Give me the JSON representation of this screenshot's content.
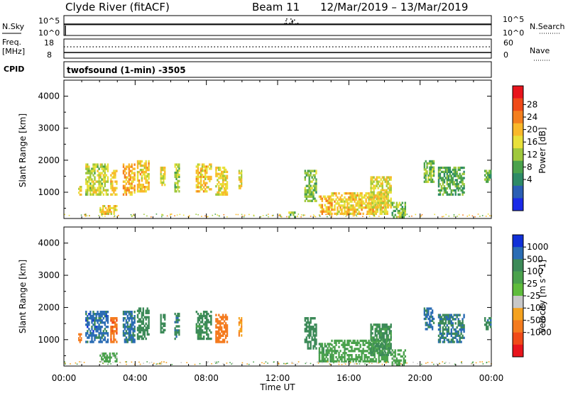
{
  "header": {
    "station": "Clyde River (fitACF)",
    "beam": "Beam 11",
    "dates": "12/Mar/2019 – 13/Mar/2019"
  },
  "noise_panel": {
    "left_label": "N.Sky",
    "left_ticks": [
      "10^5",
      "10^0"
    ],
    "right_label": "N.Search",
    "right_ticks": [
      "10^5",
      "10^0"
    ]
  },
  "freq_panel": {
    "left_label_1": "Freq.",
    "left_label_2": "[MHz]",
    "left_ticks": [
      "18",
      "8"
    ],
    "right_label": "Nave",
    "right_ticks": [
      "60",
      "0"
    ],
    "cpid_label": "CPID",
    "cpid_text": "twofsound (1-min) -3505"
  },
  "power_colorbar": {
    "label": "Power [dB]",
    "ticks": [
      "28",
      "24",
      "20",
      "16",
      "12",
      "8",
      "4"
    ],
    "colors": [
      "#e8141c",
      "#f04a18",
      "#f47f1e",
      "#f9b82a",
      "#e8e03a",
      "#9fc83c",
      "#4aa24c",
      "#2d8a66",
      "#2a5eb4",
      "#1a2ae8"
    ]
  },
  "velocity_colorbar": {
    "label": "Velocity [m s^-1]",
    "ticks": [
      "1000",
      "500",
      "100",
      "25",
      "-25",
      "-100",
      "-500",
      "-1000"
    ],
    "colors": [
      "#1030d8",
      "#2a6cb4",
      "#3c8a58",
      "#4aa24c",
      "#5fbc3c",
      "#c8c8c8",
      "#f5a21f",
      "#f47b1e",
      "#f04a18",
      "#e8141c"
    ]
  },
  "chart_data": [
    {
      "type": "heatmap",
      "title": "Power",
      "ylabel": "Slant Range [km]",
      "ylim": [
        180,
        4500
      ],
      "yticks": [
        "4000",
        "3000",
        "2000",
        "1000"
      ],
      "x_start": "00:00",
      "x_end": "24:00",
      "xticks": [
        "00:00",
        "04:00",
        "08:00",
        "12:00",
        "16:00",
        "20:00",
        "00:00"
      ],
      "regions": [
        {
          "t0": 0.8,
          "t1": 1.0,
          "r0": 900,
          "r1": 1200,
          "v": 14
        },
        {
          "t0": 1.2,
          "t1": 2.5,
          "r0": 900,
          "r1": 1900,
          "v": 12
        },
        {
          "t0": 2.6,
          "t1": 3.0,
          "r0": 900,
          "r1": 1700,
          "v": 16
        },
        {
          "t0": 2.0,
          "t1": 3.0,
          "r0": 300,
          "r1": 600,
          "v": 16
        },
        {
          "t0": 3.3,
          "t1": 4.0,
          "r0": 900,
          "r1": 1900,
          "v": 18
        },
        {
          "t0": 4.1,
          "t1": 4.8,
          "r0": 1000,
          "r1": 2000,
          "v": 16
        },
        {
          "t0": 5.4,
          "t1": 5.7,
          "r0": 1200,
          "r1": 1800,
          "v": 14
        },
        {
          "t0": 6.2,
          "t1": 6.5,
          "r0": 1000,
          "r1": 1900,
          "v": 10
        },
        {
          "t0": 7.4,
          "t1": 8.3,
          "r0": 1000,
          "r1": 1900,
          "v": 16
        },
        {
          "t0": 8.5,
          "t1": 9.2,
          "r0": 900,
          "r1": 1800,
          "v": 14
        },
        {
          "t0": 9.8,
          "t1": 10.0,
          "r0": 1100,
          "r1": 1700,
          "v": 14
        },
        {
          "t0": 12.6,
          "t1": 13.0,
          "r0": 200,
          "r1": 400,
          "v": 8
        },
        {
          "t0": 13.5,
          "t1": 14.2,
          "r0": 700,
          "r1": 1700,
          "v": 8
        },
        {
          "t0": 14.3,
          "t1": 15.0,
          "r0": 300,
          "r1": 900,
          "v": 18
        },
        {
          "t0": 15.0,
          "t1": 18.2,
          "r0": 300,
          "r1": 1000,
          "v": 16
        },
        {
          "t0": 17.2,
          "t1": 18.4,
          "r0": 500,
          "r1": 1500,
          "v": 14
        },
        {
          "t0": 18.4,
          "t1": 19.2,
          "r0": 200,
          "r1": 700,
          "v": 8
        },
        {
          "t0": 20.2,
          "t1": 20.8,
          "r0": 1300,
          "r1": 2000,
          "v": 8
        },
        {
          "t0": 21.0,
          "t1": 22.5,
          "r0": 900,
          "r1": 1800,
          "v": 6
        },
        {
          "t0": 23.6,
          "t1": 24.0,
          "r0": 1300,
          "r1": 1700,
          "v": 6
        }
      ]
    },
    {
      "type": "heatmap",
      "title": "Velocity",
      "ylabel": "Slant Range [km]",
      "ylim": [
        180,
        4500
      ],
      "yticks": [
        "4000",
        "3000",
        "2000",
        "1000"
      ],
      "x_start": "00:00",
      "x_end": "24:00",
      "xticks": [
        "00:00",
        "04:00",
        "08:00",
        "12:00",
        "16:00",
        "20:00",
        "00:00"
      ],
      "xlabel": "Time UT",
      "regions": [
        {
          "t0": 0.8,
          "t1": 1.0,
          "r0": 900,
          "r1": 1200,
          "v": -300
        },
        {
          "t0": 1.2,
          "t1": 2.5,
          "r0": 900,
          "r1": 1900,
          "v": 700
        },
        {
          "t0": 2.6,
          "t1": 3.0,
          "r0": 900,
          "r1": 1700,
          "v": -400
        },
        {
          "t0": 2.0,
          "t1": 3.0,
          "r0": 300,
          "r1": 600,
          "v": 50
        },
        {
          "t0": 3.3,
          "t1": 4.0,
          "r0": 900,
          "r1": 1900,
          "v": 600
        },
        {
          "t0": 4.1,
          "t1": 4.8,
          "r0": 1000,
          "r1": 2000,
          "v": 200
        },
        {
          "t0": 5.4,
          "t1": 5.7,
          "r0": 1200,
          "r1": 1800,
          "v": 300
        },
        {
          "t0": 6.2,
          "t1": 6.5,
          "r0": 1000,
          "r1": 1900,
          "v": 400
        },
        {
          "t0": 7.4,
          "t1": 8.3,
          "r0": 1000,
          "r1": 1900,
          "v": 150
        },
        {
          "t0": 8.5,
          "t1": 9.2,
          "r0": 900,
          "r1": 1800,
          "v": -300
        },
        {
          "t0": 9.8,
          "t1": 10.0,
          "r0": 1100,
          "r1": 1700,
          "v": -80
        },
        {
          "t0": 13.5,
          "t1": 14.2,
          "r0": 700,
          "r1": 1700,
          "v": 200
        },
        {
          "t0": 14.3,
          "t1": 15.0,
          "r0": 300,
          "r1": 900,
          "v": 80
        },
        {
          "t0": 15.0,
          "t1": 18.2,
          "r0": 300,
          "r1": 1000,
          "v": 70
        },
        {
          "t0": 17.2,
          "t1": 18.4,
          "r0": 500,
          "r1": 1500,
          "v": 120
        },
        {
          "t0": 18.4,
          "t1": 19.2,
          "r0": 200,
          "r1": 700,
          "v": 50
        },
        {
          "t0": 20.2,
          "t1": 20.8,
          "r0": 1300,
          "r1": 2000,
          "v": 600
        },
        {
          "t0": 21.0,
          "t1": 22.5,
          "r0": 900,
          "r1": 1800,
          "v": 500
        },
        {
          "t0": 23.6,
          "t1": 24.0,
          "r0": 1300,
          "r1": 1700,
          "v": 400
        }
      ]
    }
  ]
}
